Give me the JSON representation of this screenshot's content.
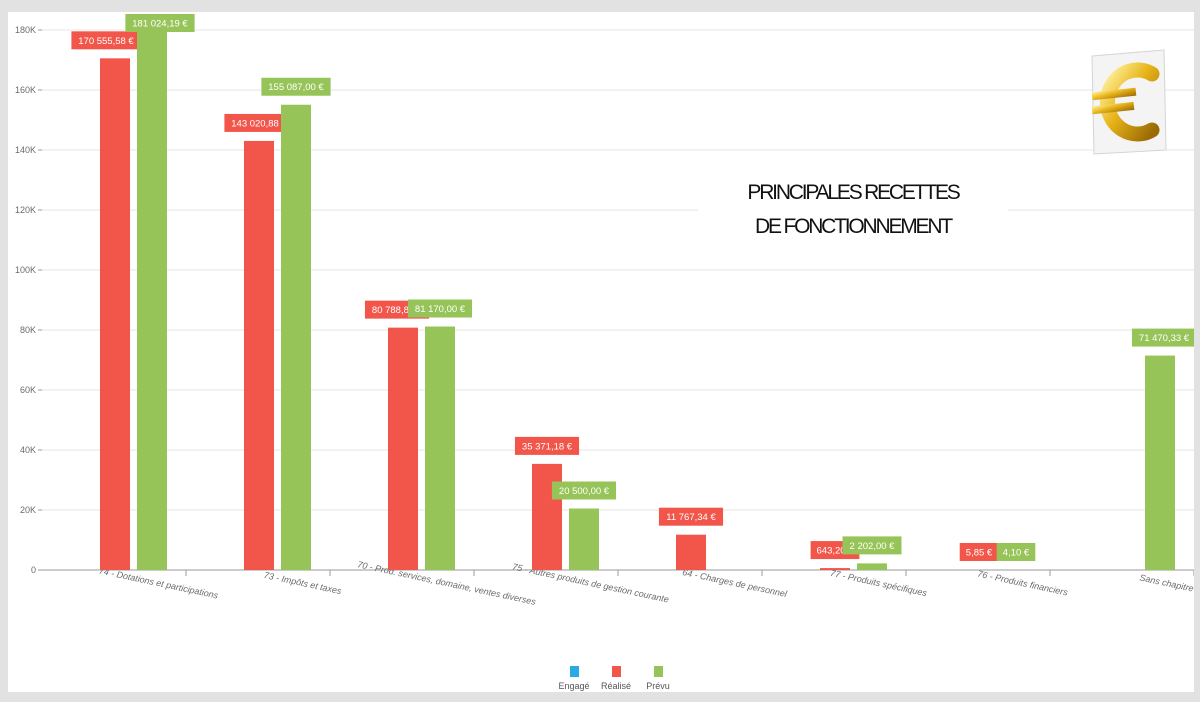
{
  "chart_data": {
    "type": "bar",
    "title": "PRINCIPALES RECETTES DE FONCTIONNEMENT",
    "title_lines": [
      "PRINCIPALES RECETTES",
      "DE FONCTIONNEMENT"
    ],
    "categories": [
      "74 - Dotations et participations",
      "73 - Impôts et taxes",
      "70 - Prod. services, domaine, ventes diverses",
      "75 - Autres produits de gestion courante",
      "64 - Charges de personnel",
      "77 - Produits spécifiques",
      "76 - Produits financiers",
      "Sans chapitre"
    ],
    "series": [
      {
        "name": "Engagé",
        "color": "#29abe2",
        "values": [
          null,
          null,
          null,
          null,
          null,
          null,
          null,
          null
        ],
        "labels": [
          null,
          null,
          null,
          null,
          null,
          null,
          null,
          null
        ]
      },
      {
        "name": "Réalisé",
        "color": "#f2564b",
        "values": [
          170555.58,
          143020.88,
          80788.87,
          35371.18,
          11767.34,
          643.2,
          5.85,
          null
        ],
        "labels": [
          "170 555,58 €",
          "143 020,88 €",
          "80 788,87 €",
          "35 371,18 €",
          "11 767,34 €",
          "643,20 €",
          "5,85 €",
          null
        ]
      },
      {
        "name": "Prévu",
        "color": "#97c459",
        "values": [
          181024.19,
          155087.0,
          81170.0,
          20500.0,
          null,
          2202.0,
          4.1,
          71470.33
        ],
        "labels": [
          "181 024,19 €",
          "155 087,00 €",
          "81 170,00 €",
          "20 500,00 €",
          null,
          "2 202,00 €",
          "4,10 €",
          "71 470,33 €"
        ]
      }
    ],
    "yticks": [
      0,
      20000,
      40000,
      60000,
      80000,
      100000,
      120000,
      140000,
      160000,
      180000
    ],
    "ytick_labels": [
      "0",
      "20K",
      "40K",
      "60K",
      "80K",
      "100K",
      "120K",
      "140K",
      "160K",
      "180K"
    ],
    "ylim": [
      0,
      180000
    ],
    "xlabel": "",
    "ylabel": "",
    "grid": true,
    "legend_position": "bottom-center"
  },
  "decor": {
    "logo_icon": "euro-coin-icon"
  }
}
